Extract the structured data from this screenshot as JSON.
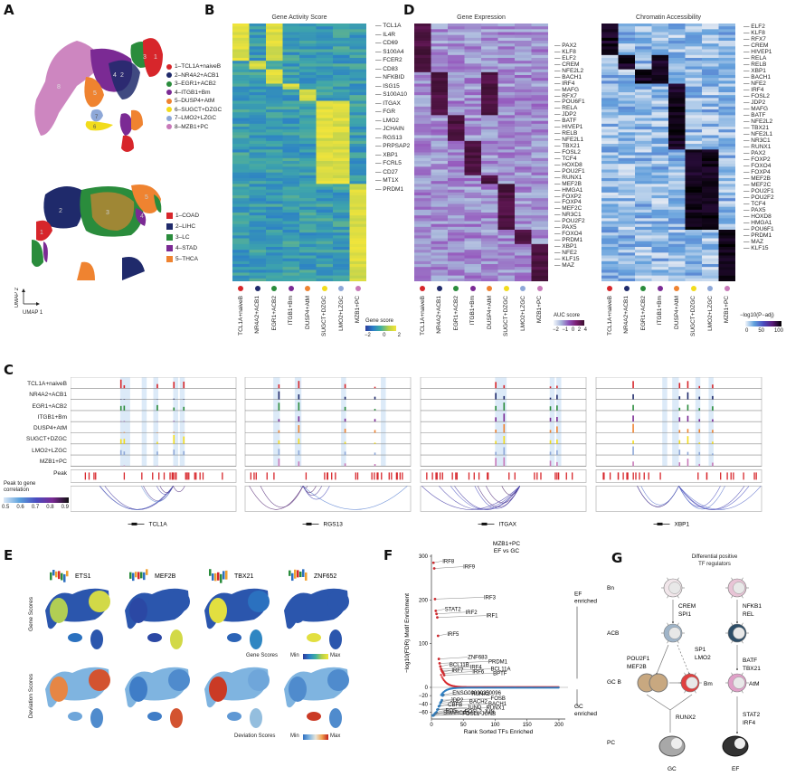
{
  "panels": {
    "A": {
      "label": "A",
      "cluster_legend": [
        {
          "label": "1–TCL1A+naiveB",
          "color": "#d7262b"
        },
        {
          "label": "2–NR4A2+ACB1",
          "color": "#1f2a6b"
        },
        {
          "label": "3–EGR1+ACB2",
          "color": "#2a8c3c"
        },
        {
          "label": "4–ITGB1+Bm",
          "color": "#7b2a94"
        },
        {
          "label": "5–DUSP4+AtM",
          "color": "#ef8330"
        },
        {
          "label": "6–SUGCT+DZGC",
          "color": "#f2dc1c"
        },
        {
          "label": "7–LMO2+LZGC",
          "color": "#8ea8d8"
        },
        {
          "label": "8–MZB1+PC",
          "color": "#c879b9"
        }
      ],
      "cancer_legend": [
        {
          "label": "1–COAD",
          "color": "#d7262b"
        },
        {
          "label": "2–LIHC",
          "color": "#1f2a6b"
        },
        {
          "label": "3–LC",
          "color": "#2a8c3c"
        },
        {
          "label": "4–STAD",
          "color": "#7b2a94"
        },
        {
          "label": "5–THCA",
          "color": "#ef8330"
        }
      ],
      "umap_numbers_top": [
        "1",
        "3",
        "4",
        "2",
        "5",
        "8",
        "7",
        "6"
      ],
      "umap_numbers_bottom": [
        "2",
        "3",
        "5",
        "1",
        "4"
      ],
      "axis_y": "UMAP 2",
      "axis_x": "UMAP 1"
    },
    "B": {
      "label": "B",
      "title": "Gene Activity Score",
      "genes": [
        "TCL1A",
        "IL4R",
        "CD69",
        "S100A4",
        "FCER2",
        "CD83",
        "NFKBID",
        "ISG15",
        "S100A10",
        "ITGAX",
        "FGR",
        "LMO2",
        "JCHAIN",
        "RGS13",
        "PRPSAP2",
        "XBP1",
        "FCRL5",
        "CD27",
        "MT1X",
        "PRDM1"
      ],
      "legend_title": "Gene score",
      "legend_ticks": [
        "−2",
        "0",
        "2"
      ]
    },
    "D": {
      "label": "D",
      "expr_title": "Gene Expression",
      "expr_genes": [
        "PAX2",
        "KLF8",
        "ELF2",
        "CREM",
        "NFE2L2",
        "BACH1",
        "IRF4",
        "MAFG",
        "RFX7",
        "POU6F1",
        "RELA",
        "JDP2",
        "BATF",
        "HIVEP1",
        "RELB",
        "NFE2L1",
        "TBX21",
        "FOSL2",
        "TCF4",
        "HOXD8",
        "POU2F1",
        "RUNX1",
        "MEF2B",
        "HMGA1",
        "FOXP2",
        "FOXP4",
        "MEF2C",
        "NR3C1",
        "POU2F2",
        "PAX5",
        "FOXO4",
        "PRDM1",
        "XBP1",
        "NFE2",
        "KLF15",
        "MAZ"
      ],
      "expr_legend_title": "AUC score",
      "expr_legend_ticks": [
        "−2",
        "−1",
        "0",
        "2",
        "4"
      ],
      "chrom_title": "Chromatin Accessibility",
      "chrom_genes": [
        "ELF2",
        "KLF8",
        "RFX7",
        "CREM",
        "HIVEP1",
        "RELA",
        "RELB",
        "XBP1",
        "BACH1",
        "NFE2",
        "IRF4",
        "FOSL2",
        "JDP2",
        "MAFG",
        "BATF",
        "NFE2L2",
        "TBX21",
        "NFE2L1",
        "NR3C1",
        "RUNX1",
        "PAX2",
        "FOXP2",
        "FOXO4",
        "FOXP4",
        "MEF2B",
        "MEF2C",
        "POU2F1",
        "POU2F2",
        "TCF4",
        "PAX5",
        "HOXD8",
        "HMGA1",
        "POU6F1",
        "PRDM1",
        "MAZ",
        "KLF15"
      ],
      "chrom_legend_title": "−log10(P−adj)",
      "chrom_legend_ticks": [
        "0",
        "50",
        "100"
      ]
    },
    "clusters": [
      {
        "name": "TCL1A+naiveB",
        "color": "#d7262b"
      },
      {
        "name": "NR4A2+ACB1",
        "color": "#1f2a6b"
      },
      {
        "name": "EGR1+ACB2",
        "color": "#2a8c3c"
      },
      {
        "name": "ITGB1+Bm",
        "color": "#7b2a94"
      },
      {
        "name": "DUSP4+AtM",
        "color": "#ef8330"
      },
      {
        "name": "SUGCT+DZGC",
        "color": "#f2dc1c"
      },
      {
        "name": "LMO2+LZGC",
        "color": "#8ea8d8"
      },
      {
        "name": "MZB1+PC",
        "color": "#c879b9"
      }
    ],
    "C": {
      "label": "C",
      "tracks": [
        "TCL1A+naiveB",
        "NR4A2+ACB1",
        "EGR1+ACB2",
        "ITGB1+Bm",
        "DUSP4+AtM",
        "SUGCT+DZGC",
        "LMO2+LZGC",
        "MZB1+PC"
      ],
      "peak_label": "Peak",
      "corr_label": "Peak to gene correlation",
      "corr_ticks": [
        "0.5",
        "0.6",
        "0.7",
        "0.8",
        "0.9"
      ],
      "loci": [
        "TCL1A",
        "RGS13",
        "ITGAX",
        "XBP1"
      ]
    },
    "E": {
      "label": "E",
      "motifs": [
        "ETS1",
        "MEF2B",
        "TBX21",
        "ZNF652"
      ],
      "row1_label": "Gene Scores",
      "row2_label": "Deviation Scores",
      "legend1_title": "Gene Scores",
      "legend2_title": "Deviation Scores",
      "min_label": "Min",
      "max_label": "Max"
    },
    "G": {
      "label": "G",
      "title_line1": "Differential positive",
      "title_line2": "TF regulators",
      "row_labels": [
        "Bn",
        "ACB",
        "GC B",
        "PC"
      ],
      "left_tf_1": [
        "CREM",
        "SPI1"
      ],
      "left_tf_2a": [
        "POU2F1",
        "MEF2B"
      ],
      "left_tf_2b": [
        "SP1",
        "LMO2"
      ],
      "left_tf_3": [
        "RUNX2"
      ],
      "right_tf_1": [
        "NFKB1",
        "REL"
      ],
      "right_tf_2": [
        "BATF",
        "TBX21"
      ],
      "right_tf_3": [
        "STAT2",
        "IRF4"
      ],
      "bm_label": "Bm",
      "atm_label": "AtM",
      "bottom_left": "GC",
      "bottom_right": "EF"
    }
  },
  "chart_data": {
    "type": "scatter",
    "title": "MZB1+PC EF vs GC",
    "title_line1": "MZB1+PC",
    "title_line2": "EF vs GC",
    "xlabel": "Rank Sorted TFs Enriched",
    "ylabel": "−log10(FDR) Motif Enrichment",
    "xlim": [
      0,
      210
    ],
    "ylim": [
      -70,
      310
    ],
    "xticks": [
      "0",
      "50",
      "100",
      "150",
      "200"
    ],
    "yticks": [
      "300",
      "200",
      "100",
      "0",
      "−20",
      "−40",
      "−60"
    ],
    "ef_label_1": "EF",
    "ef_label_2": "enriched",
    "gc_label_1": "GC",
    "gc_label_2": "enriched",
    "series": [
      {
        "name": "EF enriched",
        "color": "#d7262b",
        "labeled_points": [
          {
            "label": "IRF8",
            "x": 1,
            "y": 285
          },
          {
            "label": "IRF9",
            "x": 2,
            "y": 272
          },
          {
            "label": "IRF3",
            "x": 3,
            "y": 202
          },
          {
            "label": "STAT2",
            "x": 4,
            "y": 175
          },
          {
            "label": "IRF2",
            "x": 5,
            "y": 168
          },
          {
            "label": "IRF1",
            "x": 6,
            "y": 160
          },
          {
            "label": "IRF5",
            "x": 7,
            "y": 118
          },
          {
            "label": "ZNF683",
            "x": 8,
            "y": 65
          },
          {
            "label": "PRDM1",
            "x": 9,
            "y": 55
          },
          {
            "label": "BCL11B",
            "x": 10,
            "y": 48
          },
          {
            "label": "IRF4",
            "x": 11,
            "y": 42
          },
          {
            "label": "BCL11A",
            "x": 12,
            "y": 38
          },
          {
            "label": "IRF7",
            "x": 13,
            "y": 35
          },
          {
            "label": "IRF6",
            "x": 14,
            "y": 32
          },
          {
            "label": "BPTF",
            "x": 15,
            "y": 28
          }
        ]
      },
      {
        "name": "GC enriched",
        "color": "#2f7fc1",
        "labeled_points": [
          {
            "label": "ENSG00000250096",
            "x": 14,
            "y": -18
          },
          {
            "label": "RUNX2",
            "x": 13,
            "y": -20
          },
          {
            "label": "FOSB",
            "x": 12,
            "y": -31
          },
          {
            "label": "JDP2",
            "x": 11,
            "y": -35
          },
          {
            "label": "BACH2",
            "x": 10,
            "y": -38
          },
          {
            "label": "BACH1",
            "x": 9,
            "y": -44
          },
          {
            "label": "CBFB",
            "x": 8,
            "y": -46
          },
          {
            "label": "JUND",
            "x": 7,
            "y": -53
          },
          {
            "label": "RUNX1",
            "x": 6,
            "y": -54
          },
          {
            "label": "FOS",
            "x": 5,
            "y": -60
          },
          {
            "label": "FOSL2",
            "x": 4,
            "y": -62
          },
          {
            "label": "JUN",
            "x": 3,
            "y": -63
          },
          {
            "label": "SMARCC1",
            "x": 2,
            "y": -66
          },
          {
            "label": "FOSL1",
            "x": 1,
            "y": -68
          },
          {
            "label": "JUNB",
            "x": 0,
            "y": -68
          }
        ]
      }
    ]
  }
}
